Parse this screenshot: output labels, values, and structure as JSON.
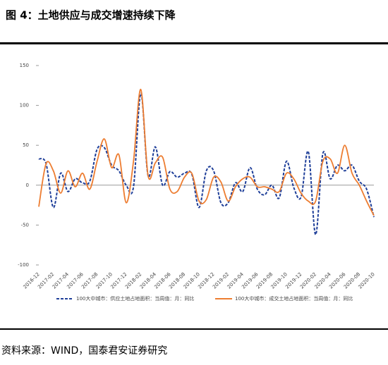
{
  "header": {
    "title": "图 4：土地供应与成交增速持续下降"
  },
  "chart_data": {
    "type": "line",
    "categories": [
      "2016-12",
      null,
      "2017-02",
      null,
      "2017-04",
      null,
      "2017-06",
      null,
      "2017-08",
      null,
      "2017-10",
      null,
      "2017-12",
      null,
      "2018-02",
      null,
      "2018-04",
      null,
      "2018-06",
      null,
      "2018-08",
      null,
      "2018-10",
      null,
      "2018-12",
      null,
      "2019-02",
      null,
      "2019-04",
      null,
      "2019-06",
      null,
      "2019-08",
      null,
      "2019-10",
      null,
      "2019-12",
      null,
      "2020-02",
      null,
      "2020-04",
      null,
      "2020-06",
      null,
      "2020-08",
      null,
      "2020-10"
    ],
    "series": [
      {
        "name": "100大中城市：供应土地占地面积：当周值：月：同比",
        "color": "#1f3f99",
        "dash": true,
        "values": [
          33,
          27,
          -28,
          15,
          -8,
          8,
          3,
          5,
          45,
          47,
          25,
          18,
          0,
          -2,
          115,
          12,
          48,
          0,
          17,
          10,
          15,
          14,
          -28,
          18,
          18,
          -22,
          -22,
          3,
          -8,
          22,
          -5,
          -12,
          0,
          -16,
          30,
          -3,
          -15,
          42,
          -62,
          40,
          8,
          25,
          18,
          25,
          5,
          -5,
          -40
        ]
      },
      {
        "name": "100大中城市：成交土地占地面积：当周值：月：同比",
        "color": "#ed7d31",
        "dash": false,
        "values": [
          -27,
          27,
          18,
          -10,
          18,
          -2,
          15,
          -5,
          30,
          58,
          22,
          38,
          -22,
          30,
          120,
          12,
          28,
          35,
          -5,
          -8,
          10,
          15,
          -20,
          -18,
          10,
          4,
          -20,
          -2,
          8,
          10,
          -2,
          -2,
          -5,
          -8,
          15,
          8,
          -10,
          -20,
          -20,
          30,
          33,
          15,
          50,
          15,
          0,
          -20,
          -38
        ]
      }
    ],
    "ylim": [
      -100,
      150
    ],
    "yticks": [
      -100,
      -50,
      0,
      50,
      100,
      150
    ]
  },
  "footer": {
    "source": "资料来源：WIND，国泰君安证券研究"
  }
}
